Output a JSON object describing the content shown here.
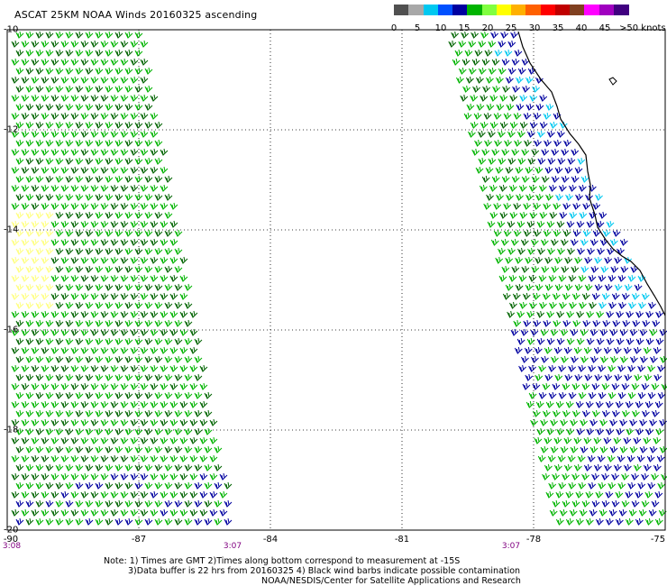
{
  "title": "ASCAT 25KM NOAA Winds 20160325 ascending",
  "colorbar": {
    "labels": [
      "0",
      "5",
      "10",
      "15",
      "20",
      "25",
      "30",
      "35",
      "40",
      "45",
      ">50 knots"
    ],
    "colors": [
      "#505050",
      "#a8a8a8",
      "#00c8f0",
      "#0050ff",
      "#0000a0",
      "#00b400",
      "#80ff40",
      "#ffff00",
      "#ffb000",
      "#ff6000",
      "#ff0000",
      "#c00000",
      "#804020",
      "#ff00ff",
      "#a000c0",
      "#400080"
    ]
  },
  "map": {
    "lon_range": [
      -90,
      -75
    ],
    "lat_range": [
      -20,
      -10
    ],
    "lat_ticks": [
      "-10",
      "-12",
      "-14",
      "-16",
      "-18",
      "-20"
    ],
    "lon_ticks": [
      "-90",
      "-87",
      "-84",
      "-81",
      "-78",
      "-75"
    ],
    "grid": true,
    "barb_colors": {
      "green": "#00b400",
      "dark_green": "#006400",
      "blue": "#0000a0",
      "light_blue": "#00c8f0",
      "yellow": "#ffff80"
    }
  },
  "times": {
    "left_start": "3:08",
    "left_end": "3:07",
    "right_start": "3:07"
  },
  "notes": {
    "line1": "Note: 1) Times are GMT 2)Times along bottom correspond to measurement at -15S",
    "line2": "3)Data buffer is 22 hrs from 20160325 4) Black wind barbs indicate possible contamination",
    "line3": "NOAA/NESDIS/Center for Satellite Applications and Research"
  }
}
